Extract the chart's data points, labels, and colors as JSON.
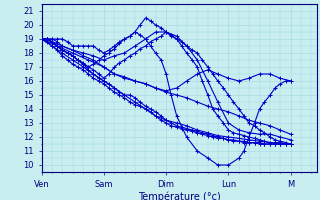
{
  "xlabel": "Température (°c)",
  "background_color": "#c8eef0",
  "grid_color": "#a0d8e0",
  "line_color": "#0000cc",
  "ylim": [
    9.5,
    21.5
  ],
  "xlim": [
    0.0,
    4.42
  ],
  "xtick_labels": [
    "Ven",
    "Sam",
    "Dim",
    "Lun",
    "M"
  ],
  "xtick_positions": [
    0,
    1,
    2,
    3,
    4
  ],
  "ytick_positions": [
    10,
    11,
    12,
    13,
    14,
    15,
    16,
    17,
    18,
    19,
    20,
    21
  ],
  "series": [
    {
      "x": [
        0,
        0.08,
        0.17,
        0.25,
        0.33,
        0.42,
        0.5,
        0.58,
        0.67,
        0.75,
        0.83,
        0.92,
        1.0,
        1.08,
        1.17,
        1.25,
        1.33,
        1.42,
        1.5,
        1.58,
        1.67,
        1.75,
        1.83,
        1.92,
        2.0,
        2.08,
        2.17,
        2.25,
        2.33,
        2.42,
        2.5,
        2.58,
        2.67,
        2.75,
        2.83,
        2.92,
        3.0,
        3.08,
        3.17,
        3.25,
        3.33,
        3.42,
        3.5,
        3.58,
        3.67,
        3.75,
        3.83,
        3.92,
        4.0
      ],
      "y": [
        19,
        19,
        18.8,
        18.5,
        18.2,
        18,
        17.8,
        17.5,
        17.3,
        17,
        17.2,
        17.5,
        17.8,
        18,
        18.3,
        18.7,
        19,
        19.2,
        19.5,
        20,
        20.5,
        20.3,
        20,
        19.8,
        19.5,
        19.2,
        19,
        18.8,
        18.5,
        18.2,
        18,
        17.5,
        17,
        16.5,
        16,
        15.5,
        15,
        14.5,
        14,
        13.5,
        13,
        12.8,
        12.5,
        12.3,
        12,
        11.8,
        11.7,
        11.6,
        11.5
      ]
    },
    {
      "x": [
        0,
        0.08,
        0.17,
        0.25,
        0.33,
        0.42,
        0.5,
        0.58,
        0.67,
        0.75,
        0.83,
        0.92,
        1.0,
        1.08,
        1.17,
        1.25,
        1.33,
        1.42,
        1.5,
        1.58,
        1.67,
        1.75,
        1.83,
        1.92,
        2.0,
        2.08,
        2.17,
        2.25,
        2.33,
        2.42,
        2.5,
        2.58,
        2.67,
        2.75,
        2.83,
        2.92,
        3.0,
        3.08,
        3.17,
        3.25,
        3.33,
        3.42,
        3.5,
        3.58,
        3.67,
        3.75,
        3.83,
        3.92,
        4.0
      ],
      "y": [
        19,
        19,
        18.8,
        18.5,
        18.2,
        18,
        17.8,
        17.5,
        17.2,
        17,
        16.8,
        16.5,
        16.2,
        16.5,
        17,
        17.3,
        17.5,
        17.8,
        18,
        18.3,
        18.5,
        18.8,
        19,
        19.2,
        19.5,
        19.3,
        19,
        18.5,
        18,
        17.5,
        17,
        16,
        15,
        14,
        13.5,
        13,
        12.5,
        12.3,
        12.2,
        12.1,
        12,
        11.9,
        11.8,
        11.7,
        11.6,
        11.6,
        11.5,
        11.5,
        11.5
      ]
    },
    {
      "x": [
        0,
        0.08,
        0.17,
        0.25,
        0.33,
        0.42,
        0.5,
        0.58,
        0.67,
        0.75,
        0.83,
        0.92,
        1.0,
        1.08,
        1.17,
        1.25,
        1.33,
        1.42,
        1.5,
        1.58,
        1.67,
        1.75,
        1.83,
        1.92,
        2.0,
        2.08,
        2.17,
        2.25,
        2.33,
        2.42,
        2.5,
        2.58,
        2.67,
        2.75,
        2.83,
        2.92,
        3.0,
        3.08,
        3.17,
        3.25,
        3.33,
        3.42,
        3.5,
        3.58,
        3.67,
        3.75,
        3.83,
        3.92,
        4.0
      ],
      "y": [
        19,
        19,
        18.8,
        18.5,
        18.2,
        18,
        17.8,
        17.5,
        17.2,
        16.8,
        16.5,
        16.2,
        16,
        15.8,
        15.5,
        15.2,
        15,
        15,
        14.8,
        14.5,
        14.2,
        14,
        13.8,
        13.5,
        13.2,
        13,
        12.8,
        12.7,
        12.6,
        12.5,
        12.4,
        12.3,
        12.2,
        12.1,
        12,
        11.9,
        11.8,
        11.7,
        11.7,
        11.6,
        11.6,
        11.6,
        11.5,
        11.5,
        11.5,
        11.5,
        11.5,
        11.5,
        11.5
      ]
    },
    {
      "x": [
        0,
        0.08,
        0.17,
        0.25,
        0.33,
        0.42,
        0.5,
        0.58,
        0.67,
        0.75,
        0.83,
        0.92,
        1.0,
        1.08,
        1.17,
        1.25,
        1.33,
        1.42,
        1.5,
        1.58,
        1.67,
        1.75,
        1.83,
        1.92,
        2.0,
        2.08,
        2.17,
        2.25,
        2.33,
        2.42,
        2.5,
        2.58,
        2.67,
        2.75,
        2.83,
        2.92,
        3.0,
        3.08,
        3.17,
        3.25,
        3.33,
        3.42,
        3.5,
        3.58,
        3.67,
        3.75,
        3.83,
        3.92,
        4.0
      ],
      "y": [
        19,
        18.8,
        18.5,
        18.2,
        17.8,
        17.5,
        17.2,
        17,
        16.8,
        16.5,
        16.2,
        16,
        15.8,
        15.5,
        15.2,
        15,
        14.8,
        14.5,
        14.3,
        14.2,
        14,
        13.8,
        13.5,
        13.2,
        13,
        12.8,
        12.7,
        12.6,
        12.5,
        12.4,
        12.3,
        12.2,
        12.1,
        12,
        11.9,
        11.9,
        11.8,
        11.8,
        11.7,
        11.7,
        11.6,
        11.6,
        11.6,
        11.5,
        11.5,
        11.5,
        11.5,
        11.5,
        11.5
      ]
    },
    {
      "x": [
        0,
        0.17,
        0.33,
        0.5,
        0.67,
        0.83,
        1.0,
        1.17,
        1.33,
        1.5,
        1.67,
        1.83,
        2.0,
        2.17,
        2.33,
        2.5,
        2.67,
        2.83,
        3.0,
        3.17,
        3.33,
        3.5,
        3.67,
        3.83,
        4.0
      ],
      "y": [
        19,
        18.5,
        18,
        17.5,
        17,
        16.5,
        16,
        15.5,
        15,
        14.5,
        14,
        13.5,
        13.2,
        13,
        12.8,
        12.5,
        12.3,
        12.1,
        12,
        11.9,
        11.8,
        11.7,
        11.6,
        11.6,
        11.5
      ]
    },
    {
      "x": [
        0,
        0.17,
        0.33,
        0.5,
        0.67,
        0.83,
        1.0,
        1.17,
        1.33,
        1.5,
        1.67,
        1.83,
        2.0,
        2.17,
        2.33,
        2.5,
        2.67,
        2.83,
        3.0,
        3.17,
        3.33,
        3.5,
        3.67,
        3.83,
        4.0
      ],
      "y": [
        19,
        18.8,
        18.5,
        18.2,
        17.8,
        17.5,
        17,
        16.5,
        16.3,
        16,
        15.8,
        15.5,
        15.2,
        15,
        14.8,
        14.5,
        14.2,
        14,
        13.8,
        13.5,
        13.2,
        13,
        12.8,
        12.5,
        12.2
      ]
    },
    {
      "x": [
        0,
        0.25,
        0.5,
        0.75,
        1.0,
        1.17,
        1.33,
        1.5,
        1.67,
        1.83,
        2.0,
        2.17,
        2.33,
        2.5,
        2.67,
        2.83,
        3.0,
        3.17,
        3.33,
        3.5,
        3.67,
        3.83,
        4.0
      ],
      "y": [
        19,
        18.5,
        18,
        17.5,
        17,
        16.5,
        16.2,
        16,
        15.8,
        15.5,
        15.3,
        15.5,
        16,
        16.5,
        16.8,
        16.5,
        16.2,
        16,
        16.2,
        16.5,
        16.5,
        16.2,
        16.0
      ]
    },
    {
      "x": [
        0,
        0.08,
        0.17,
        0.25,
        0.33,
        0.42,
        0.5,
        0.58,
        0.67,
        0.75,
        0.83,
        0.92,
        1.0,
        1.08,
        1.17,
        1.25,
        1.33,
        1.42,
        1.5,
        1.58,
        1.67,
        1.75,
        1.83,
        1.92,
        2.0,
        2.08,
        2.17,
        2.33,
        2.5,
        2.67,
        2.83,
        3.0,
        3.17,
        3.25,
        3.33,
        3.42,
        3.5,
        3.58,
        3.67,
        3.75,
        3.83,
        3.92,
        4.0
      ],
      "y": [
        19,
        19,
        19,
        19,
        19,
        18.8,
        18.5,
        18.5,
        18.5,
        18.5,
        18.5,
        18.2,
        18,
        18.2,
        18.5,
        18.8,
        19,
        19.2,
        19.5,
        19.3,
        19,
        18.5,
        18,
        17.5,
        16.5,
        15,
        13.5,
        12,
        11,
        10.5,
        10,
        10,
        10.5,
        11,
        12,
        13,
        14,
        14.5,
        15,
        15.5,
        15.8,
        16,
        16.0
      ]
    },
    {
      "x": [
        0,
        0.08,
        0.17,
        0.25,
        0.33,
        0.5,
        0.67,
        0.83,
        1.0,
        1.17,
        1.33,
        1.5,
        1.67,
        1.83,
        2.0,
        2.17,
        2.33,
        2.5,
        2.67,
        2.83,
        3.0,
        3.17,
        3.33,
        3.5,
        3.67,
        3.83,
        4.0
      ],
      "y": [
        19,
        19,
        19,
        18.8,
        18.5,
        18.2,
        18,
        17.8,
        17.5,
        17.8,
        18,
        18.5,
        19,
        19.5,
        19.5,
        19.2,
        18.5,
        17.5,
        16,
        14.5,
        13,
        12.5,
        12.3,
        12.2,
        12.2,
        12,
        11.8
      ]
    }
  ],
  "lw": 0.8,
  "ms": 2.5
}
